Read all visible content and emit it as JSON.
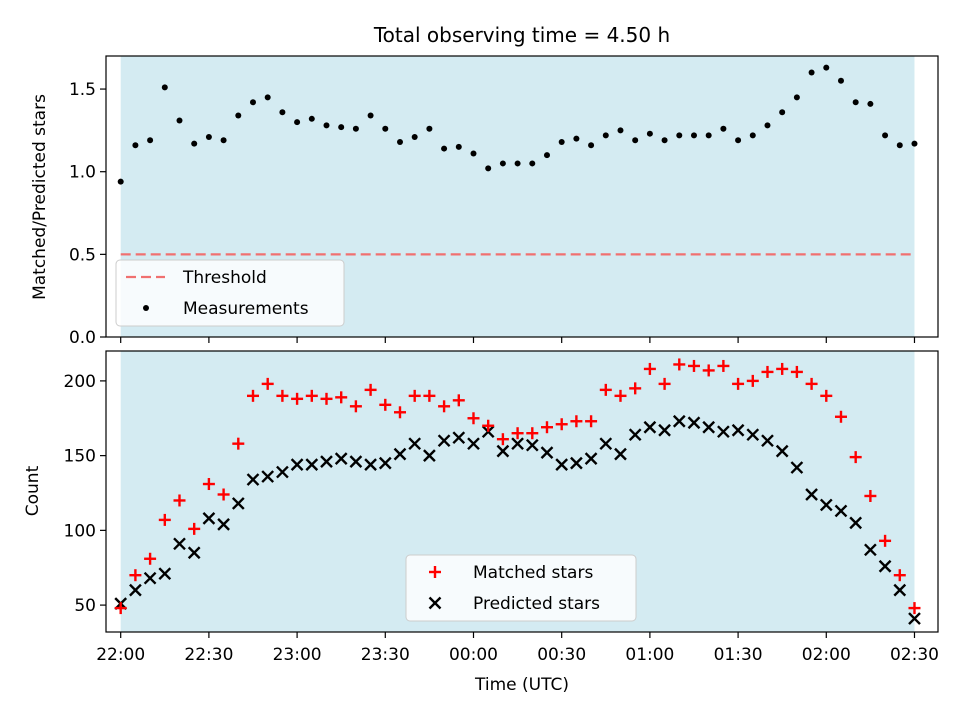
{
  "colors": {
    "shade": "#add8e6",
    "threshold": "#f07070",
    "measurements": "#000000",
    "matched": "#ff0000",
    "predicted": "#000000"
  },
  "chart_data": [
    {
      "type": "scatter",
      "title": "Total observing time = 4.50 h",
      "xlabel": "",
      "ylabel": "Matched/Predicted stars",
      "xlim": [
        "21:55",
        "02:38"
      ],
      "ylim": [
        0,
        1.7
      ],
      "yticks": [
        0.0,
        0.5,
        1.0,
        1.5
      ],
      "ytick_labels": [
        "0.0",
        "0.5",
        "1.0",
        "1.5"
      ],
      "observing_window": [
        "22:00",
        "02:30"
      ],
      "threshold": 0.5,
      "legend_position": "lower-left",
      "legend": [
        "Threshold",
        "Measurements"
      ],
      "series": [
        {
          "name": "Measurements",
          "x": [
            "22:00",
            "22:05",
            "22:10",
            "22:15",
            "22:20",
            "22:25",
            "22:30",
            "22:35",
            "22:40",
            "22:45",
            "22:50",
            "22:55",
            "23:00",
            "23:05",
            "23:10",
            "23:15",
            "23:20",
            "23:25",
            "23:30",
            "23:35",
            "23:40",
            "23:45",
            "23:50",
            "23:55",
            "00:00",
            "00:05",
            "00:10",
            "00:15",
            "00:20",
            "00:25",
            "00:30",
            "00:35",
            "00:40",
            "00:45",
            "00:50",
            "00:55",
            "01:00",
            "01:05",
            "01:10",
            "01:15",
            "01:20",
            "01:25",
            "01:30",
            "01:35",
            "01:40",
            "01:45",
            "01:50",
            "01:55",
            "02:00",
            "02:05",
            "02:10",
            "02:15",
            "02:20",
            "02:25",
            "02:30"
          ],
          "values": [
            0.94,
            1.16,
            1.19,
            1.51,
            1.31,
            1.17,
            1.21,
            1.19,
            1.34,
            1.42,
            1.45,
            1.36,
            1.3,
            1.32,
            1.28,
            1.27,
            1.26,
            1.34,
            1.26,
            1.18,
            1.21,
            1.26,
            1.14,
            1.15,
            1.11,
            1.02,
            1.05,
            1.05,
            1.05,
            1.1,
            1.18,
            1.2,
            1.16,
            1.22,
            1.25,
            1.19,
            1.23,
            1.19,
            1.22,
            1.22,
            1.22,
            1.26,
            1.19,
            1.22,
            1.28,
            1.36,
            1.45,
            1.6,
            1.63,
            1.55,
            1.42,
            1.41,
            1.22,
            1.16,
            1.17
          ]
        }
      ]
    },
    {
      "type": "scatter",
      "title": "",
      "xlabel": "Time (UTC)",
      "ylabel": "Count",
      "xlim": [
        "21:55",
        "02:38"
      ],
      "ylim": [
        32,
        220
      ],
      "yticks": [
        50,
        100,
        150,
        200
      ],
      "ytick_labels": [
        "50",
        "100",
        "150",
        "200"
      ],
      "xtick_labels": [
        "22:00",
        "22:30",
        "23:00",
        "23:30",
        "00:00",
        "00:30",
        "01:00",
        "01:30",
        "02:00",
        "02:30"
      ],
      "observing_window": [
        "22:00",
        "02:30"
      ],
      "legend_position": "lower-center",
      "legend": [
        "Matched stars",
        "Predicted stars"
      ],
      "series": [
        {
          "name": "Matched stars",
          "x": [
            "22:00",
            "22:05",
            "22:10",
            "22:15",
            "22:20",
            "22:25",
            "22:30",
            "22:35",
            "22:40",
            "22:45",
            "22:50",
            "22:55",
            "23:00",
            "23:05",
            "23:10",
            "23:15",
            "23:20",
            "23:25",
            "23:30",
            "23:35",
            "23:40",
            "23:45",
            "23:50",
            "23:55",
            "00:00",
            "00:05",
            "00:10",
            "00:15",
            "00:20",
            "00:25",
            "00:30",
            "00:35",
            "00:40",
            "00:45",
            "00:50",
            "00:55",
            "01:00",
            "01:05",
            "01:10",
            "01:15",
            "01:20",
            "01:25",
            "01:30",
            "01:35",
            "01:40",
            "01:45",
            "01:50",
            "01:55",
            "02:00",
            "02:05",
            "02:10",
            "02:15",
            "02:20",
            "02:25",
            "02:30"
          ],
          "values": [
            48,
            70,
            81,
            107,
            120,
            101,
            131,
            124,
            158,
            190,
            198,
            190,
            188,
            190,
            188,
            189,
            183,
            194,
            184,
            179,
            190,
            190,
            183,
            187,
            175,
            170,
            161,
            165,
            165,
            169,
            171,
            173,
            173,
            194,
            190,
            195,
            208,
            198,
            211,
            210,
            207,
            210,
            198,
            200,
            206,
            208,
            206,
            198,
            190,
            176,
            149,
            123,
            93,
            70,
            48
          ]
        },
        {
          "name": "Predicted stars",
          "x": [
            "22:00",
            "22:05",
            "22:10",
            "22:15",
            "22:20",
            "22:25",
            "22:30",
            "22:35",
            "22:40",
            "22:45",
            "22:50",
            "22:55",
            "23:00",
            "23:05",
            "23:10",
            "23:15",
            "23:20",
            "23:25",
            "23:30",
            "23:35",
            "23:40",
            "23:45",
            "23:50",
            "23:55",
            "00:00",
            "00:05",
            "00:10",
            "00:15",
            "00:20",
            "00:25",
            "00:30",
            "00:35",
            "00:40",
            "00:45",
            "00:50",
            "00:55",
            "01:00",
            "01:05",
            "01:10",
            "01:15",
            "01:20",
            "01:25",
            "01:30",
            "01:35",
            "01:40",
            "01:45",
            "01:50",
            "01:55",
            "02:00",
            "02:05",
            "02:10",
            "02:15",
            "02:20",
            "02:25",
            "02:30"
          ],
          "values": [
            51,
            60,
            68,
            71,
            91,
            85,
            108,
            104,
            118,
            134,
            136,
            139,
            144,
            144,
            146,
            148,
            146,
            144,
            145,
            151,
            158,
            150,
            160,
            162,
            158,
            166,
            153,
            158,
            157,
            152,
            144,
            145,
            148,
            158,
            151,
            164,
            169,
            167,
            173,
            172,
            169,
            166,
            167,
            164,
            160,
            153,
            142,
            124,
            117,
            113,
            105,
            87,
            76,
            60,
            41
          ]
        }
      ]
    }
  ]
}
